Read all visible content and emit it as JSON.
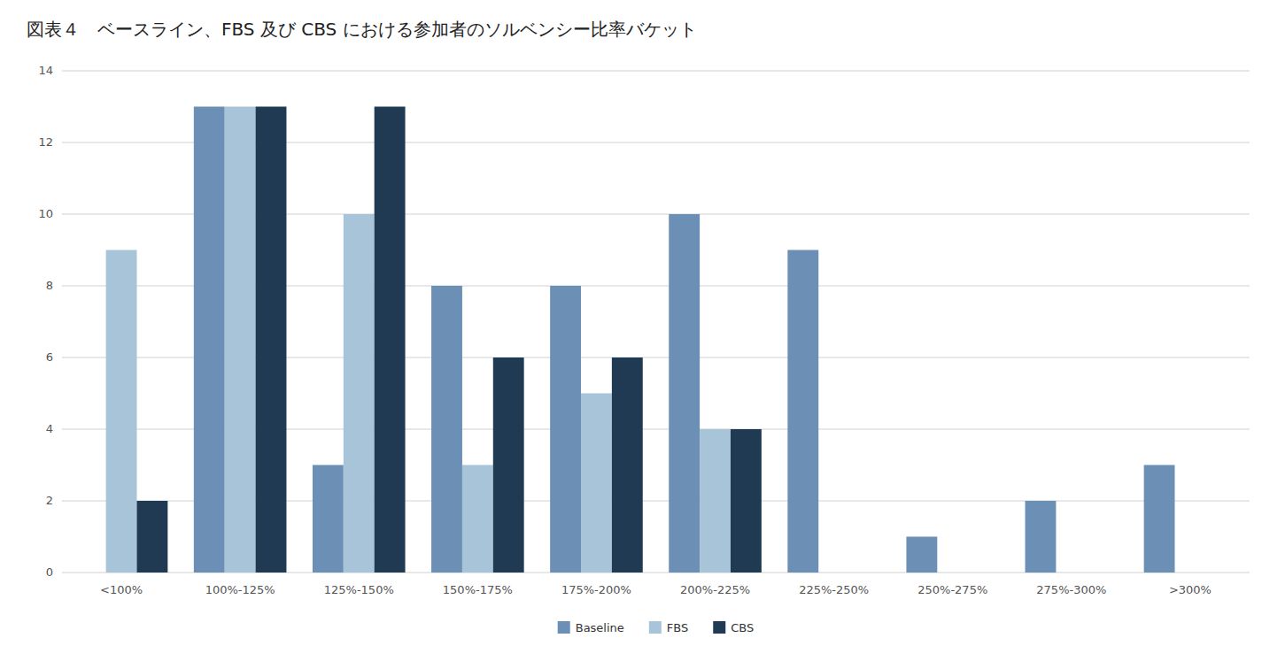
{
  "chart_data": {
    "type": "bar",
    "title": "図表４　ベースライン、FBS 及び CBS における参加者のソルベンシー比率バケット",
    "categories": [
      "<100%",
      "100%-125%",
      "125%-150%",
      "150%-175%",
      "175%-200%",
      "200%-225%",
      "225%-250%",
      "250%-275%",
      "275%-300%",
      ">300%"
    ],
    "series": [
      {
        "name": "Baseline",
        "color": "#6b8fb5",
        "values": [
          0,
          13,
          3,
          8,
          8,
          10,
          9,
          1,
          2,
          3
        ]
      },
      {
        "name": "FBS",
        "color": "#a8c4d8",
        "values": [
          9,
          13,
          10,
          3,
          5,
          4,
          0,
          0,
          0,
          0
        ]
      },
      {
        "name": "CBS",
        "color": "#1f3a52",
        "values": [
          2,
          13,
          13,
          6,
          6,
          4,
          0,
          0,
          0,
          0
        ]
      }
    ],
    "ylim": [
      0,
      14
    ],
    "yticks": [
      0,
      2,
      4,
      6,
      8,
      10,
      12,
      14
    ],
    "grid": true,
    "legend": "bottom"
  }
}
